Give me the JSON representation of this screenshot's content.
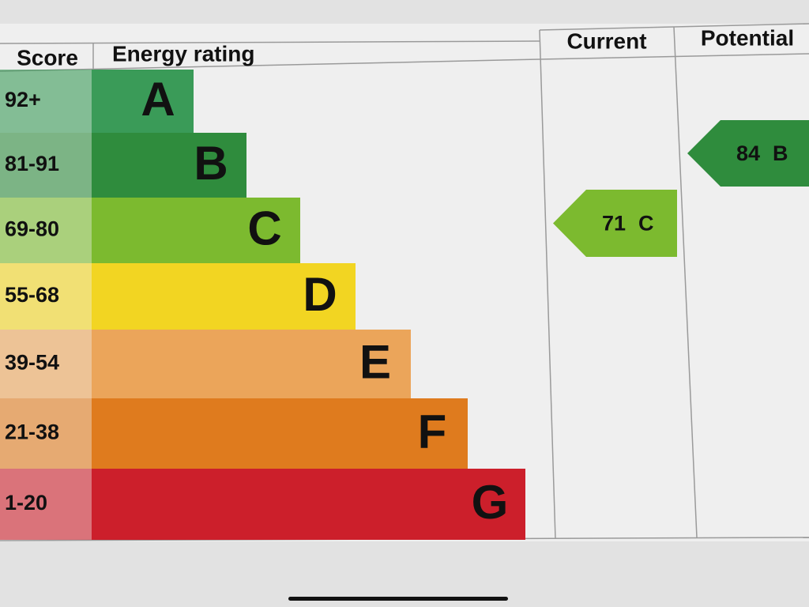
{
  "chart_data": {
    "type": "epc",
    "headers": {
      "score": "Score",
      "rating": "Energy rating",
      "current": "Current",
      "potential": "Potential"
    },
    "bands": [
      {
        "score": "92+",
        "letter": "A",
        "color": "#3a9b58"
      },
      {
        "score": "81-91",
        "letter": "B",
        "color": "#2f8c3d"
      },
      {
        "score": "69-80",
        "letter": "C",
        "color": "#7cba2f"
      },
      {
        "score": "55-68",
        "letter": "D",
        "color": "#f2d522"
      },
      {
        "score": "39-54",
        "letter": "E",
        "color": "#eba55a"
      },
      {
        "score": "21-38",
        "letter": "F",
        "color": "#df7b1e"
      },
      {
        "score": "1-20",
        "letter": "G",
        "color": "#cc1f2b"
      }
    ],
    "current": {
      "value": 71,
      "letter": "C",
      "color": "#7cba2f"
    },
    "potential": {
      "value": 84,
      "letter": "B",
      "color": "#2f8c3d"
    }
  }
}
